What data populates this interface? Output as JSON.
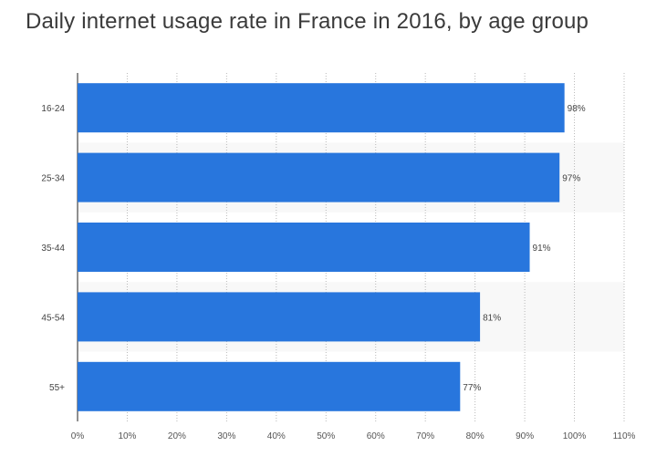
{
  "chart_data": {
    "type": "bar",
    "orientation": "horizontal",
    "title": "Daily internet usage rate in France in 2016, by age group",
    "categories": [
      "16-24",
      "25-34",
      "35-44",
      "45-54",
      "55+"
    ],
    "values": [
      98,
      97,
      91,
      81,
      77
    ],
    "data_labels": [
      "98%",
      "97%",
      "91%",
      "81%",
      "77%"
    ],
    "xlim": [
      0,
      110
    ],
    "x_ticks": [
      "0%",
      "10%",
      "20%",
      "30%",
      "40%",
      "50%",
      "60%",
      "70%",
      "80%",
      "90%",
      "100%",
      "110%"
    ],
    "grid": true,
    "bar_color": "#2876dd"
  }
}
